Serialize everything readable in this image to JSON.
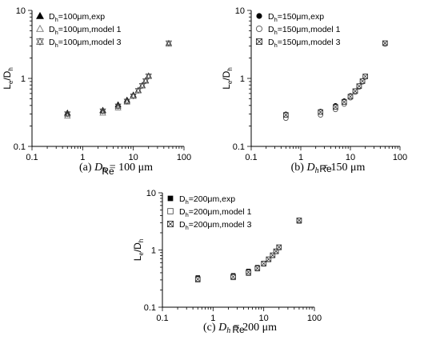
{
  "chart_data": [
    {
      "type": "scatter",
      "caption": {
        "prefix": "(a)",
        "var": "D",
        "sub": "h",
        "rest": " = 100 μm"
      },
      "xlabel": "Re",
      "ylabel": {
        "main": "L",
        "sub1": "e",
        "slash": "/D",
        "sub2": "h"
      },
      "xscale": "log",
      "yscale": "log",
      "xlim": [
        0.1,
        100
      ],
      "ylim": [
        0.1,
        10
      ],
      "xticklabels": [
        "0.1",
        "1",
        "10",
        "100"
      ],
      "yticklabels": [
        "0.1",
        "1",
        "10"
      ],
      "legend_position": "top-left",
      "series": [
        {
          "legend": {
            "pre": "D",
            "sub": "h",
            "post": "=100μm,exp"
          },
          "marker": "triangle-filled",
          "x": [
            0.5,
            2.5,
            5,
            7.5,
            10,
            12.5,
            15,
            17.5,
            20
          ],
          "y": [
            0.31,
            0.34,
            0.41,
            0.48,
            0.57,
            0.67,
            0.79,
            0.93,
            1.09
          ]
        },
        {
          "legend": {
            "pre": "D",
            "sub": "h",
            "post": "=100μm,model 1"
          },
          "marker": "triangle-open",
          "x": [
            0.5,
            2.5,
            5,
            7.5,
            10,
            12.5,
            15,
            17.5,
            20,
            50
          ],
          "y": [
            0.28,
            0.31,
            0.37,
            0.45,
            0.55,
            0.66,
            0.78,
            0.92,
            1.07,
            3.2
          ]
        },
        {
          "legend": {
            "pre": "D",
            "sub": "h",
            "post": "=100μm,model 3"
          },
          "marker": "star",
          "x": [
            0.5,
            2.5,
            5,
            7.5,
            10,
            12.5,
            15,
            17.5,
            20,
            50
          ],
          "y": [
            0.3,
            0.33,
            0.39,
            0.46,
            0.55,
            0.66,
            0.78,
            0.92,
            1.08,
            3.3
          ]
        }
      ]
    },
    {
      "type": "scatter",
      "caption": {
        "prefix": "(b)",
        "var": "D",
        "sub": "h",
        "rest": " = 150 μm"
      },
      "xlabel": "Re",
      "ylabel": {
        "main": "L",
        "sub1": "e",
        "slash": "/D",
        "sub2": "h"
      },
      "xscale": "log",
      "yscale": "log",
      "xlim": [
        0.1,
        100
      ],
      "ylim": [
        0.1,
        10
      ],
      "xticklabels": [
        "0.1",
        "1",
        "10",
        "100"
      ],
      "yticklabels": [
        "0.1",
        "1",
        "10"
      ],
      "legend_position": "top-left",
      "series": [
        {
          "legend": {
            "pre": "D",
            "sub": "h",
            "post": "=150μm,exp"
          },
          "marker": "circle-filled",
          "x": [
            0.5,
            2.5,
            5,
            7.5,
            10,
            12.5,
            15,
            17.5,
            20
          ],
          "y": [
            0.3,
            0.33,
            0.4,
            0.47,
            0.56,
            0.66,
            0.78,
            0.92,
            1.08
          ]
        },
        {
          "legend": {
            "pre": "D",
            "sub": "h",
            "post": "=150μm,model 1"
          },
          "marker": "circle-open",
          "x": [
            0.5,
            2.5,
            5,
            7.5,
            10,
            12.5,
            15,
            17.5,
            20,
            50
          ],
          "y": [
            0.26,
            0.29,
            0.35,
            0.42,
            0.52,
            0.63,
            0.75,
            0.89,
            1.05,
            3.2
          ]
        },
        {
          "legend": {
            "pre": "D",
            "sub": "h",
            "post": "=150μm,model 3"
          },
          "marker": "square-x",
          "x": [
            0.5,
            2.5,
            5,
            7.5,
            10,
            12.5,
            15,
            17.5,
            20,
            50
          ],
          "y": [
            0.29,
            0.32,
            0.38,
            0.45,
            0.54,
            0.65,
            0.77,
            0.91,
            1.07,
            3.3
          ]
        }
      ]
    },
    {
      "type": "scatter",
      "caption": {
        "prefix": "(c)",
        "var": "D",
        "sub": "h",
        "rest": " = 200 μm"
      },
      "xlabel": "Re",
      "ylabel": {
        "main": "L",
        "sub1": "e",
        "slash": "/D",
        "sub2": "h"
      },
      "xscale": "log",
      "yscale": "log",
      "xlim": [
        0.1,
        100
      ],
      "ylim": [
        0.1,
        10
      ],
      "xticklabels": [
        "0.1",
        "1",
        "10",
        "100"
      ],
      "yticklabels": [
        "0.1",
        "1",
        "10"
      ],
      "legend_position": "top-left",
      "series": [
        {
          "legend": {
            "pre": "D",
            "sub": "h",
            "post": "=200μm,exp"
          },
          "marker": "square-filled",
          "x": [
            0.5,
            2.5,
            5,
            7.5,
            10,
            12.5,
            15,
            17.5,
            20
          ],
          "y": [
            0.33,
            0.36,
            0.43,
            0.5,
            0.59,
            0.69,
            0.81,
            0.95,
            1.11
          ]
        },
        {
          "legend": {
            "pre": "D",
            "sub": "h",
            "post": "=200μm,model 1"
          },
          "marker": "square-open",
          "x": [
            0.5,
            2.5,
            5,
            7.5,
            10,
            12.5,
            15,
            17.5,
            20,
            50
          ],
          "y": [
            0.3,
            0.33,
            0.39,
            0.47,
            0.57,
            0.68,
            0.8,
            0.94,
            1.1,
            3.2
          ]
        },
        {
          "legend": {
            "pre": "D",
            "sub": "h",
            "post": "=200μm,model 3"
          },
          "marker": "square-x",
          "x": [
            0.5,
            2.5,
            5,
            7.5,
            10,
            12.5,
            15,
            17.5,
            20,
            50
          ],
          "y": [
            0.31,
            0.34,
            0.41,
            0.48,
            0.58,
            0.69,
            0.81,
            0.95,
            1.12,
            3.3
          ]
        }
      ]
    }
  ]
}
